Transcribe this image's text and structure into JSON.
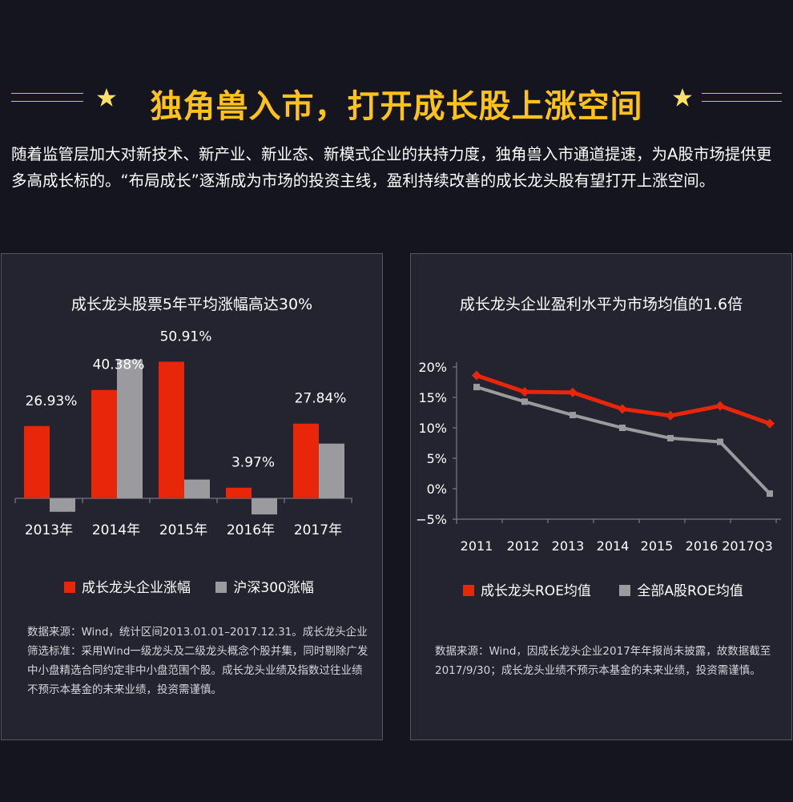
{
  "header": {
    "title": "独角兽入市，打开成长股上涨空间",
    "intro": "随着监管层加大对新技术、新产业、新业态、新模式企业的扶持力度，独角兽入市通道提速，为A股市场提供更多高成长标的。“布局成长”逐渐成为市场的投资主线，盈利持续改善的成长龙头股有望打开上涨空间。",
    "accent_color": "#ffc21a"
  },
  "chart_data": [
    {
      "type": "bar",
      "title": "成长龙头股票5年平均涨幅高达30%",
      "categories": [
        "2013年",
        "2014年",
        "2015年",
        "2016年",
        "2017年"
      ],
      "series": [
        {
          "name": "成长龙头企业涨幅",
          "color": "#e8260a",
          "values": [
            26.93,
            40.38,
            50.91,
            3.97,
            27.84
          ]
        },
        {
          "name": "沪深300涨幅",
          "color": "#9b9b9f",
          "values": [
            -5.0,
            51.7,
            7.0,
            -6.0,
            20.4
          ]
        }
      ],
      "data_labels": [
        "26.93%",
        "40.38%",
        "50.91%",
        "3.97%",
        "27.84%"
      ],
      "ylim": [
        -10,
        55
      ],
      "grid": false,
      "legend": "bottom",
      "note": "数据来源：Wind，统计区间2013.01.01–2017.12.31。成长龙头企业筛选标准：采用Wind一级龙头及二级龙头概念个股并集，同时剔除广发中小盘精选合同约定非中小盘范围个股。成长龙头业绩及指数过往业绩不预示本基金的未来业绩，投资需谨慎。"
    },
    {
      "type": "line",
      "title": "成长龙头企业盈利水平为市场均值的1.6倍",
      "x": [
        "2011",
        "2012",
        "2013",
        "2014",
        "2015",
        "2016",
        "2017Q3"
      ],
      "series": [
        {
          "name": "成长龙头ROE均值",
          "color": "#e8260a",
          "values": [
            18.6,
            15.9,
            15.8,
            13.1,
            12.0,
            13.6,
            10.7
          ]
        },
        {
          "name": "全部A股ROE均值",
          "color": "#9b9b9f",
          "values": [
            16.7,
            14.3,
            12.1,
            10.0,
            8.3,
            7.7,
            -0.8
          ]
        }
      ],
      "y_ticks": [
        "20%",
        "15%",
        "10%",
        "5%",
        "0%",
        "−5%"
      ],
      "y_tick_values": [
        20,
        15,
        10,
        5,
        0,
        -5
      ],
      "ylim": [
        -5,
        20
      ],
      "grid": false,
      "legend": "bottom",
      "note": "数据来源：Wind，因成长龙头企业2017年年报尚未披露，故数据截至2017/9/30；成长龙头业绩不预示本基金的未来业绩，投资需谨慎。"
    }
  ]
}
